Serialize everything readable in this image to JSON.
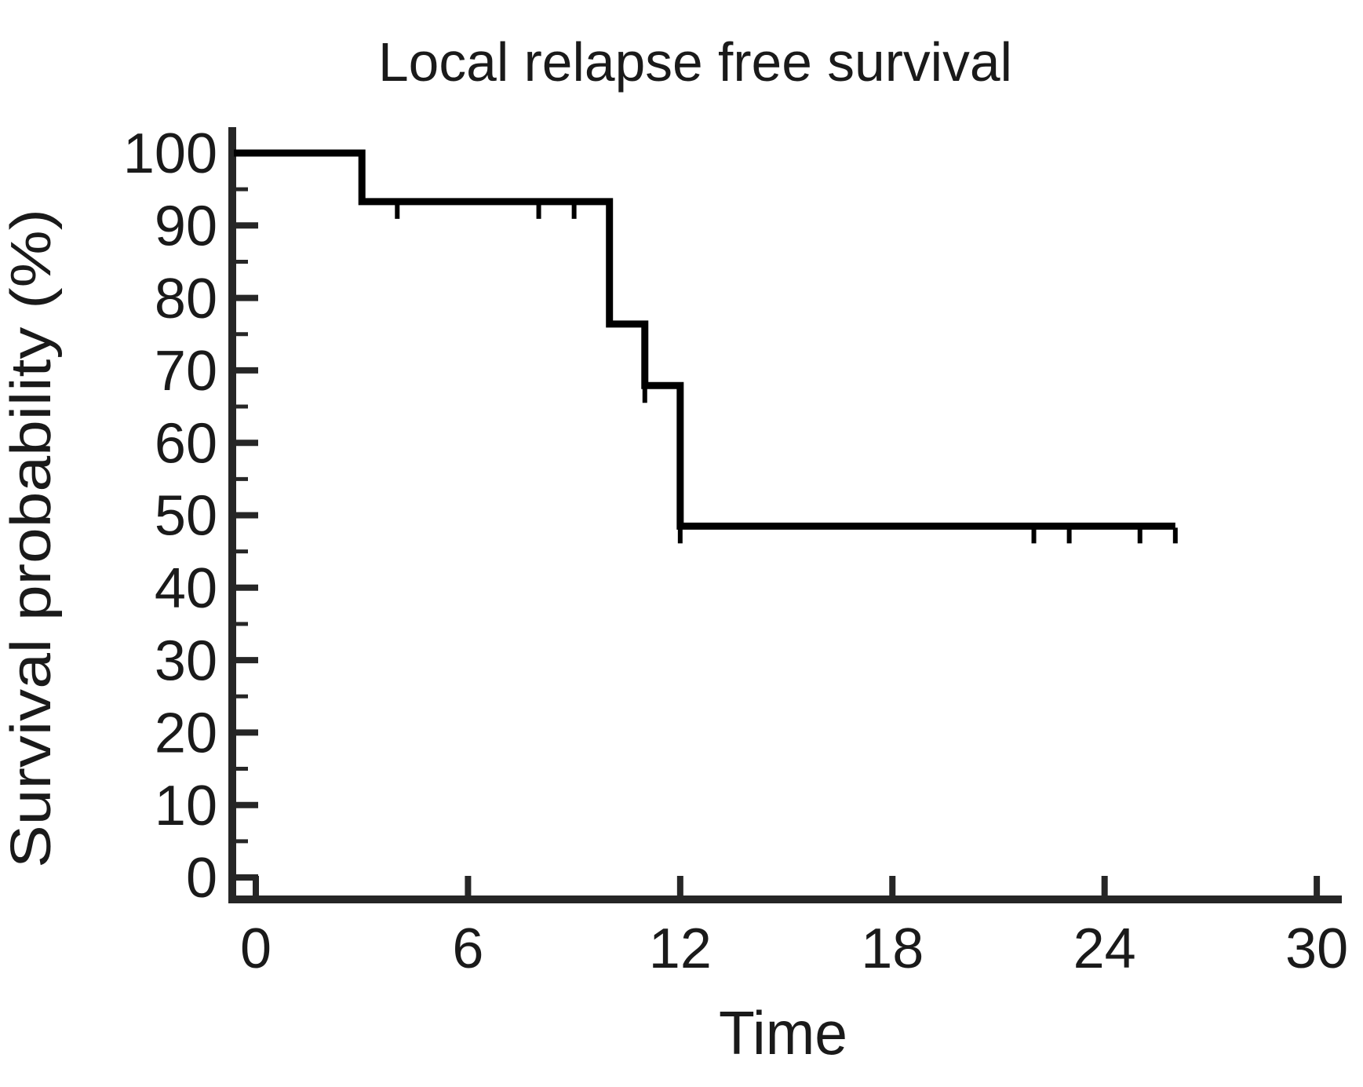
{
  "chart_data": {
    "type": "line",
    "chart_style": "kaplan-meier-step",
    "title": "Local relapse free survival",
    "xlabel": "Time",
    "ylabel": "Survival probability (%)",
    "xlim": [
      0,
      30
    ],
    "ylim": [
      0,
      100
    ],
    "x_ticks": [
      0,
      6,
      12,
      18,
      24,
      30
    ],
    "y_ticks": [
      0,
      10,
      20,
      30,
      40,
      50,
      60,
      70,
      80,
      90,
      100
    ],
    "y_minor_tick_step": 5,
    "grid": false,
    "legend_position": "none",
    "colors": {
      "curve": "#000000",
      "axis": "#262626",
      "text": "#1a1a1a",
      "background": "#ffffff"
    },
    "series": [
      {
        "name": "Local relapse free survival",
        "step_points": [
          {
            "time": 0,
            "survival_pct": 100
          },
          {
            "time": 3,
            "survival_pct": 93.3
          },
          {
            "time": 10,
            "survival_pct": 76.4
          },
          {
            "time": 11,
            "survival_pct": 67.9
          },
          {
            "time": 12,
            "survival_pct": 48.5
          }
        ],
        "end_time": 26,
        "censor_marks": [
          {
            "time": 4,
            "survival_pct": 93.3
          },
          {
            "time": 8,
            "survival_pct": 93.3
          },
          {
            "time": 9,
            "survival_pct": 93.3
          },
          {
            "time": 11,
            "survival_pct": 67.9
          },
          {
            "time": 12,
            "survival_pct": 48.5
          },
          {
            "time": 22,
            "survival_pct": 48.5
          },
          {
            "time": 23,
            "survival_pct": 48.5
          },
          {
            "time": 25,
            "survival_pct": 48.5
          },
          {
            "time": 26,
            "survival_pct": 48.5
          }
        ]
      }
    ]
  }
}
